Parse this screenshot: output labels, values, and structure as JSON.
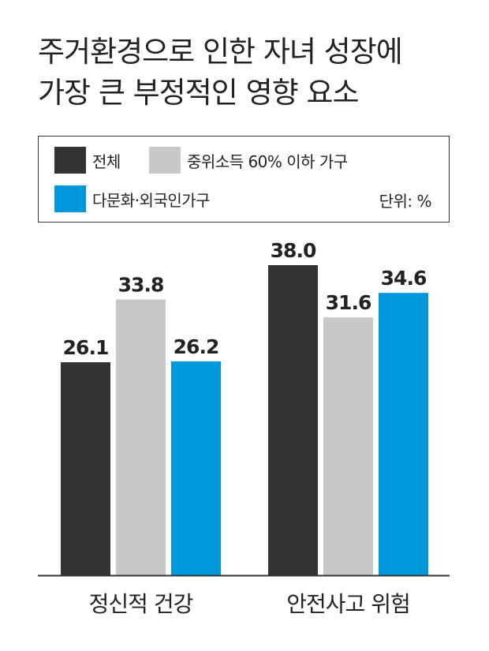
{
  "title_lines": [
    "주거환경으로 인한 자녀 성장에",
    "가장 큰 부정적인 영향 요소"
  ],
  "legend": {
    "items": [
      "전체",
      "중위소득 60% 이하 가구",
      "다문화·외국인가구"
    ],
    "unit": "단위: %"
  },
  "colors": {
    "series_1": "#333333",
    "series_2": "#c8c8c8",
    "series_3": "#0097dc",
    "axis": "#333333",
    "text": "#222222"
  },
  "chart_data": {
    "type": "bar",
    "title": "주거환경으로 인한 자녀 성장에 가장 큰 부정적인 영향 요소",
    "categories": [
      "정신적 건강",
      "안전사고 위험"
    ],
    "series": [
      {
        "name": "전체",
        "values": [
          26.1,
          38.0
        ]
      },
      {
        "name": "중위소득 60% 이하 가구",
        "values": [
          33.8,
          31.6
        ]
      },
      {
        "name": "다문화·외국인가구",
        "values": [
          26.2,
          34.6
        ]
      }
    ],
    "value_labels": [
      [
        "26.1",
        "38.0"
      ],
      [
        "33.8",
        "31.6"
      ],
      [
        "26.2",
        "34.6"
      ]
    ],
    "ylim": [
      0,
      40
    ],
    "unit": "%",
    "grid": false,
    "legend_position": "top"
  }
}
